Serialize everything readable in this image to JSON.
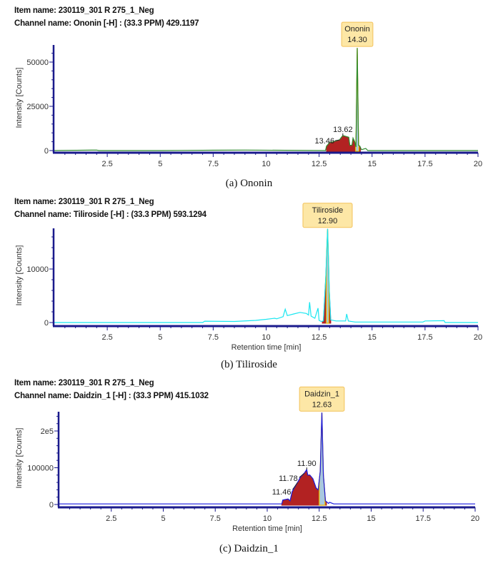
{
  "chart_data": [
    {
      "type": "line",
      "item_name": "Item name: 230119_301 R 275_1_Neg",
      "channel_name": "Channel name: Ononin [-H] : (33.3 PPM) 429.1197",
      "caption": "(a) Ononin",
      "xlabel": "",
      "ylabel": "Intensity [Counts]",
      "xlim": [
        0,
        20
      ],
      "ylim": [
        0,
        60000
      ],
      "xticks": [
        "2.5",
        "5",
        "7.5",
        "10",
        "12.5",
        "15",
        "17.5",
        "20"
      ],
      "yticks": [
        "0",
        "25000",
        "50000"
      ],
      "ytick_values": [
        0,
        25000,
        50000
      ],
      "xtick_values": [
        2.5,
        5,
        7.5,
        10,
        12.5,
        15,
        17.5,
        20
      ],
      "line_color": "#2e8b2e",
      "series": [
        {
          "x": [
            0,
            2,
            2.1,
            5,
            7.5,
            9,
            12.8,
            12.85,
            13.0,
            13.3,
            13.46,
            13.62,
            13.9,
            13.95,
            14.05,
            14.1,
            14.18,
            14.24,
            14.3,
            14.36,
            14.42,
            14.5,
            14.7,
            14.8,
            15,
            20
          ],
          "y": [
            0,
            300,
            0,
            0,
            200,
            300,
            0,
            2500,
            4500,
            5500,
            6000,
            8500,
            7500,
            3000,
            3000,
            7000,
            5000,
            2000,
            58000,
            3000,
            2500,
            500,
            1200,
            0,
            0,
            0
          ]
        }
      ],
      "integrated_range": [
        12.85,
        14.45
      ],
      "main_peak_range": [
        14.22,
        14.38
      ],
      "main_peak": {
        "label": "Ononin",
        "rt": "14.30",
        "x": 14.3,
        "y": 58000
      },
      "peak_labels": [
        {
          "text": "13.46",
          "x": 13.46,
          "y": 6000
        },
        {
          "text": "13.62",
          "x": 13.62,
          "y": 8500
        }
      ]
    },
    {
      "type": "line",
      "item_name": "Item name: 230119_301 R 275_1_Neg",
      "channel_name": "Channel name: Tiliroside [-H] : (33.3 PPM) 593.1294",
      "caption": "(b) Tiliroside",
      "xlabel": "Retention time [min]",
      "ylabel": "Intensity [Counts]",
      "xlim": [
        0,
        20
      ],
      "ylim": [
        0,
        17600
      ],
      "xticks": [
        "2.5",
        "5",
        "7.5",
        "10",
        "12.5",
        "15",
        "17.5",
        "20"
      ],
      "xtick_values": [
        2.5,
        5,
        7.5,
        10,
        12.5,
        15,
        17.5,
        20
      ],
      "yticks": [
        "0",
        "10000"
      ],
      "ytick_values": [
        0,
        10000
      ],
      "line_color": "#19e6f0",
      "series": [
        {
          "x": [
            0,
            7,
            7.1,
            8.5,
            9.5,
            10,
            10.4,
            10.5,
            10.8,
            10.9,
            11.0,
            11.3,
            11.6,
            11.9,
            12.0,
            12.05,
            12.12,
            12.3,
            12.45,
            12.5,
            12.6,
            12.7,
            12.82,
            12.9,
            12.98,
            13.05,
            13.3,
            13.75,
            13.8,
            13.88,
            14.2,
            17.4,
            17.5,
            18.4,
            18.45,
            18.6,
            20
          ],
          "y": [
            0,
            0,
            250,
            200,
            400,
            600,
            800,
            700,
            1100,
            2500,
            1300,
            1600,
            1900,
            1700,
            1400,
            3800,
            1200,
            800,
            2700,
            400,
            200,
            300,
            9000,
            17500,
            6000,
            500,
            300,
            300,
            1600,
            300,
            100,
            100,
            300,
            350,
            0,
            0,
            0
          ]
        }
      ],
      "integrated_range": [
        12.65,
        13.05
      ],
      "main_peak_range": [
        12.84,
        12.96
      ],
      "main_peak": {
        "label": "Tiliroside",
        "rt": "12.90",
        "x": 12.9,
        "y": 17500
      },
      "peak_labels": []
    },
    {
      "type": "line",
      "item_name": "Item name: 230119_301 R 275_1_Neg",
      "channel_name": "Channel name: Daidzin_1 [-H] : (33.3 PPM) 415.1032",
      "caption": "(c) Daidzin_1",
      "xlabel": "Retention time [min]",
      "ylabel": "Intensity [Counts]",
      "xlim": [
        0,
        20
      ],
      "ylim": [
        0,
        255000
      ],
      "xticks": [
        "2.5",
        "5",
        "7.5",
        "10",
        "12.5",
        "15",
        "17.5",
        "20"
      ],
      "xtick_values": [
        2.5,
        5,
        7.5,
        10,
        12.5,
        15,
        17.5,
        20
      ],
      "yticks": [
        "0",
        "100000",
        "2e5"
      ],
      "ytick_values": [
        0,
        100000,
        200000
      ],
      "line_color": "#1a1ae0",
      "series": [
        {
          "x": [
            0,
            10.7,
            10.75,
            11.0,
            11.1,
            11.2,
            11.35,
            11.46,
            11.6,
            11.78,
            11.9,
            11.95,
            12.05,
            12.2,
            12.35,
            12.45,
            12.55,
            12.63,
            12.7,
            12.8,
            12.95,
            13.0,
            13.2,
            20
          ],
          "y": [
            1500,
            1500,
            12000,
            15000,
            10000,
            35000,
            50000,
            60000,
            75000,
            85000,
            95000,
            80000,
            80000,
            70000,
            45000,
            40000,
            90000,
            250000,
            80000,
            10000,
            3000,
            6000,
            1500,
            1500
          ]
        }
      ],
      "integrated_range": [
        10.7,
        12.85
      ],
      "main_peak_range": [
        12.5,
        12.78
      ],
      "main_peak": {
        "label": "Daidzin_1",
        "rt": "12.63",
        "x": 12.63,
        "y": 250000
      },
      "peak_labels": [
        {
          "text": "11.46",
          "x": 11.46,
          "y": 60000
        },
        {
          "text": "11.78",
          "x": 11.78,
          "y": 85000
        },
        {
          "text": "11.90",
          "x": 11.9,
          "y": 95000
        }
      ]
    }
  ],
  "colors": {
    "axis": "#1a1a8c",
    "integration": "#b22222",
    "peak_fill": "#a8c8e0",
    "peak_outline": "#e8b800",
    "label_box": "#fde7a6",
    "label_border": "#f3c25a"
  }
}
